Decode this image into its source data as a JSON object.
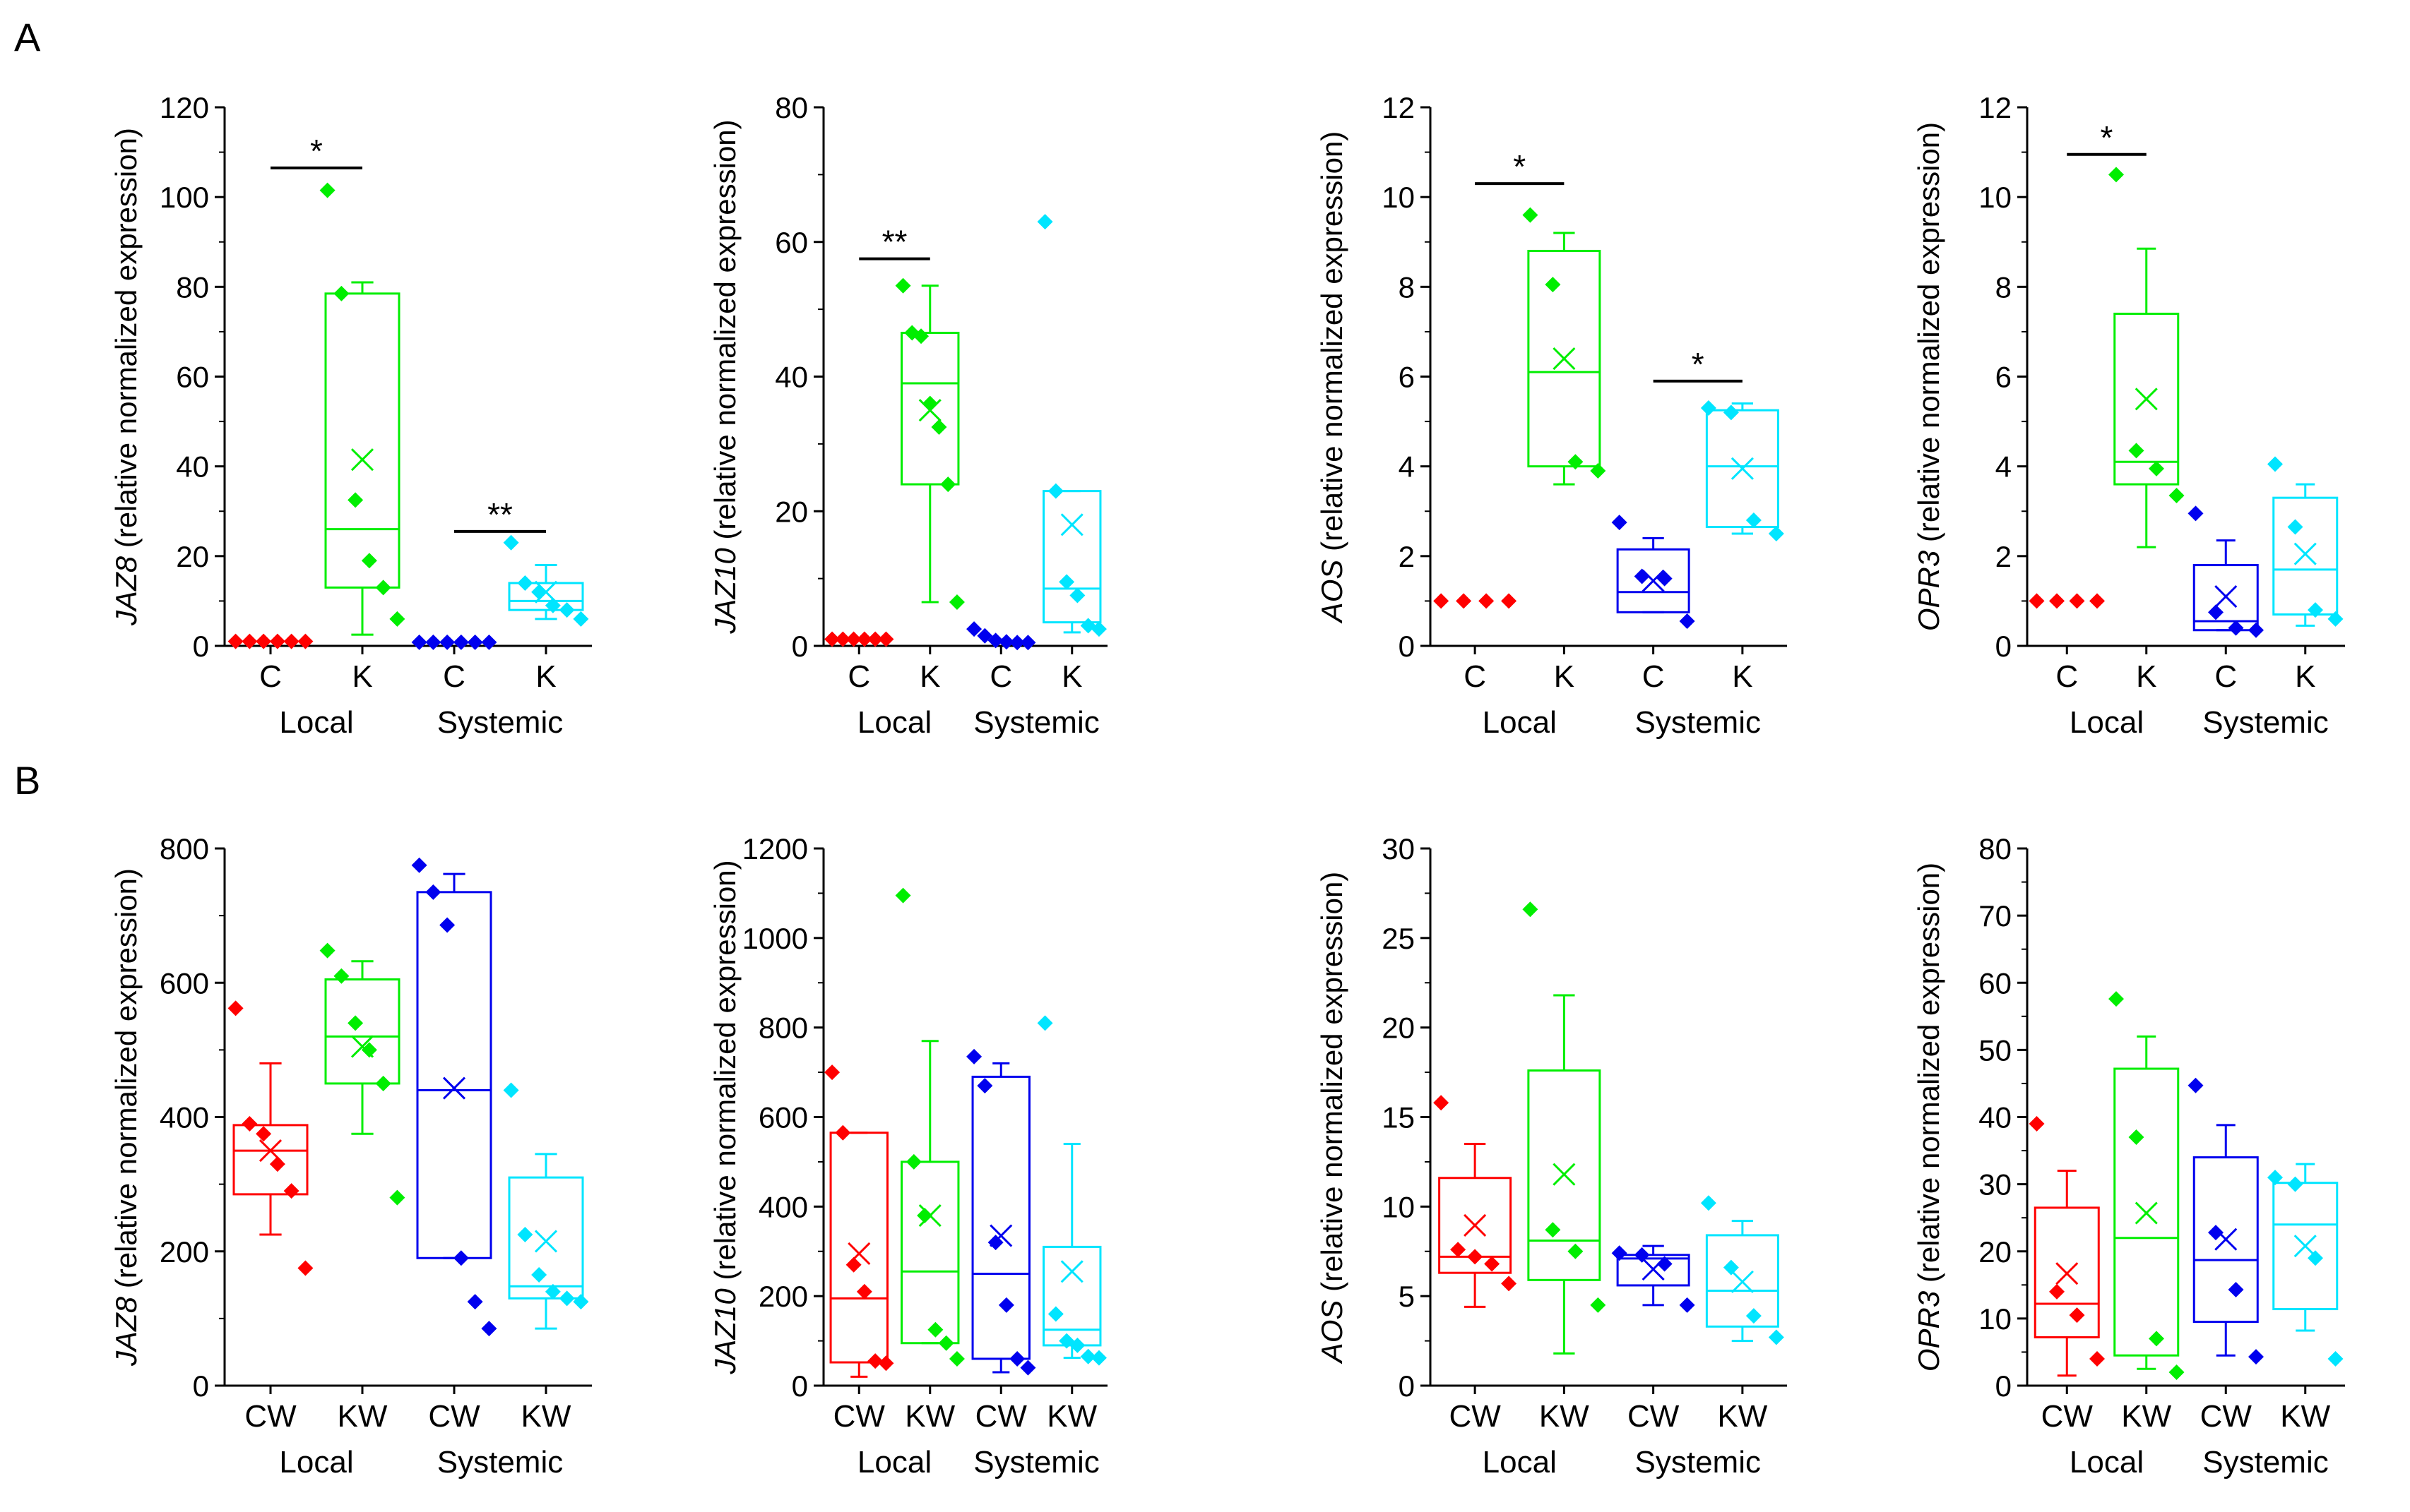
{
  "chart_data": [
    {
      "type": "box",
      "panel": "A",
      "gene": "JAZ8",
      "ylabel_rest": " (relative normalized expression)",
      "ylim": [
        0,
        120
      ],
      "yticks": [
        0,
        20,
        40,
        60,
        80,
        100,
        120
      ],
      "categories": [
        "C",
        "K",
        "C",
        "K"
      ],
      "groups": [
        "Local",
        "Systemic"
      ],
      "boxes": [
        {
          "name": "Local C",
          "color": "#ff0000",
          "points": [
            1,
            1,
            1,
            1,
            1,
            1
          ]
        },
        {
          "name": "Local K",
          "color": "#00ee00",
          "whislo": 2.5,
          "q1": 13,
          "med": 26,
          "q3": 78.5,
          "whishi": 81,
          "mean": 41.5,
          "points": [
            101.5,
            78.5,
            32.5,
            19,
            13,
            6
          ]
        },
        {
          "name": "Systemic C",
          "color": "#0000ee",
          "points": [
            0.8,
            0.8,
            0.8,
            0.8,
            0.8,
            0.8
          ]
        },
        {
          "name": "Systemic K",
          "color": "#00e5ff",
          "whislo": 6,
          "q1": 8,
          "med": 10,
          "q3": 14,
          "whishi": 18,
          "mean": 12,
          "points": [
            23,
            14,
            12,
            9,
            8,
            6
          ]
        }
      ],
      "significance": [
        {
          "box": 1,
          "label": "*",
          "y": 106.5
        },
        {
          "box": 3,
          "label": "**",
          "y": 25.5
        }
      ]
    },
    {
      "type": "box",
      "panel": "A",
      "gene": "JAZ10",
      "ylabel_rest": " (relative normalized expression)",
      "ylim": [
        0,
        80
      ],
      "yticks": [
        0,
        20,
        40,
        60,
        80
      ],
      "categories": [
        "C",
        "K",
        "C",
        "K"
      ],
      "groups": [
        "Local",
        "Systemic"
      ],
      "boxes": [
        {
          "name": "Local C",
          "color": "#ff0000",
          "points": [
            1,
            1,
            1,
            1,
            1,
            1
          ]
        },
        {
          "name": "Local K",
          "color": "#00ee00",
          "whislo": 6.5,
          "q1": 24,
          "med": 39,
          "q3": 46.5,
          "whishi": 53.5,
          "mean": 35,
          "points": [
            53.5,
            46.5,
            46,
            36,
            32.5,
            24,
            6.5
          ]
        },
        {
          "name": "Systemic C",
          "color": "#0000ee",
          "points": [
            2.5,
            1.5,
            0.8,
            0.6,
            0.5,
            0.5
          ]
        },
        {
          "name": "Systemic K",
          "color": "#00e5ff",
          "whislo": 2,
          "q1": 3.5,
          "med": 8.5,
          "q3": 23,
          "whishi": 23,
          "mean": 18,
          "points": [
            63,
            23,
            9.5,
            7.5,
            3,
            2.5
          ]
        }
      ],
      "significance": [
        {
          "box": 1,
          "label": "**",
          "y": 57.5
        }
      ]
    },
    {
      "type": "box",
      "panel": "A",
      "gene": "AOS",
      "ylabel_rest": " (relative normalized expression)",
      "ylim": [
        0,
        12
      ],
      "yticks": [
        0,
        2,
        4,
        6,
        8,
        10,
        12
      ],
      "categories": [
        "C",
        "K",
        "C",
        "K"
      ],
      "groups": [
        "Local",
        "Systemic"
      ],
      "boxes": [
        {
          "name": "Local C",
          "color": "#ff0000",
          "points": [
            1,
            1,
            1,
            1
          ]
        },
        {
          "name": "Local K",
          "color": "#00ee00",
          "whislo": 3.6,
          "q1": 4,
          "med": 6.1,
          "q3": 8.8,
          "whishi": 9.2,
          "mean": 6.4,
          "points": [
            9.6,
            8.05,
            4.1,
            3.9
          ]
        },
        {
          "name": "Systemic C",
          "color": "#0000ee",
          "whislo": 0.75,
          "q1": 0.75,
          "med": 1.2,
          "q3": 2.15,
          "whishi": 2.4,
          "mean": 1.45,
          "points": [
            2.75,
            1.55,
            1.5,
            0.55
          ]
        },
        {
          "name": "Systemic K",
          "color": "#00e5ff",
          "whislo": 2.5,
          "q1": 2.65,
          "med": 4,
          "q3": 5.25,
          "whishi": 5.4,
          "mean": 3.95,
          "points": [
            5.3,
            5.2,
            2.8,
            2.5
          ]
        }
      ],
      "significance": [
        {
          "box": 1,
          "label": "*",
          "y": 10.3
        },
        {
          "box": 3,
          "label": "*",
          "y": 5.9
        }
      ]
    },
    {
      "type": "box",
      "panel": "A",
      "gene": "OPR3",
      "ylabel_rest": " (relative normalized expression)",
      "ylim": [
        0,
        12
      ],
      "yticks": [
        0,
        2,
        4,
        6,
        8,
        10,
        12
      ],
      "categories": [
        "C",
        "K",
        "C",
        "K"
      ],
      "groups": [
        "Local",
        "Systemic"
      ],
      "boxes": [
        {
          "name": "Local C",
          "color": "#ff0000",
          "points": [
            1,
            1,
            1,
            1
          ]
        },
        {
          "name": "Local K",
          "color": "#00ee00",
          "whislo": 2.2,
          "q1": 3.6,
          "med": 4.1,
          "q3": 7.4,
          "whishi": 8.85,
          "mean": 5.5,
          "points": [
            10.5,
            4.35,
            3.95,
            3.35
          ]
        },
        {
          "name": "Systemic C",
          "color": "#0000ee",
          "whislo": 0.35,
          "q1": 0.35,
          "med": 0.55,
          "q3": 1.8,
          "whishi": 2.35,
          "mean": 1.1,
          "points": [
            2.95,
            0.75,
            0.4,
            0.35
          ]
        },
        {
          "name": "Systemic K",
          "color": "#00e5ff",
          "whislo": 0.45,
          "q1": 0.7,
          "med": 1.7,
          "q3": 3.3,
          "whishi": 3.6,
          "mean": 2.05,
          "points": [
            4.05,
            2.65,
            0.8,
            0.6
          ]
        }
      ],
      "significance": [
        {
          "box": 1,
          "label": "*",
          "y": 10.95
        }
      ]
    },
    {
      "type": "box",
      "panel": "B",
      "gene": "JAZ8",
      "ylabel_rest": " (relative normalized expression)",
      "ylim": [
        0,
        800
      ],
      "yticks": [
        0,
        200,
        400,
        600,
        800
      ],
      "categories": [
        "CW",
        "KW",
        "CW",
        "KW"
      ],
      "groups": [
        "Local",
        "Systemic"
      ],
      "boxes": [
        {
          "name": "Local CW",
          "color": "#ff0000",
          "whislo": 225,
          "q1": 285,
          "med": 350,
          "q3": 388,
          "whishi": 480,
          "mean": 350,
          "points": [
            562,
            390,
            375,
            330,
            290,
            175
          ]
        },
        {
          "name": "Local KW",
          "color": "#00ee00",
          "whislo": 375,
          "q1": 450,
          "med": 520,
          "q3": 605,
          "whishi": 632,
          "mean": 505,
          "points": [
            648,
            610,
            540,
            500,
            450,
            280
          ]
        },
        {
          "name": "Systemic CW",
          "color": "#0000ee",
          "whislo": 190,
          "q1": 190,
          "med": 440,
          "q3": 735,
          "whishi": 762,
          "mean": 443,
          "points": [
            775,
            735,
            686,
            190,
            125,
            85
          ]
        },
        {
          "name": "Systemic KW",
          "color": "#00e5ff",
          "whislo": 85,
          "q1": 130,
          "med": 148,
          "q3": 310,
          "whishi": 345,
          "mean": 215,
          "points": [
            440,
            225,
            165,
            140,
            130,
            125
          ]
        }
      ],
      "significance": []
    },
    {
      "type": "box",
      "panel": "B",
      "gene": "JAZ10",
      "ylabel_rest": " (relative normalized expression)",
      "ylim": [
        0,
        1200
      ],
      "yticks": [
        0,
        200,
        400,
        600,
        800,
        1000,
        1200
      ],
      "categories": [
        "CW",
        "KW",
        "CW",
        "KW"
      ],
      "groups": [
        "Local",
        "Systemic"
      ],
      "boxes": [
        {
          "name": "Local CW",
          "color": "#ff0000",
          "whislo": 20,
          "q1": 52,
          "med": 195,
          "q3": 565,
          "whishi": 565,
          "mean": 295,
          "points": [
            700,
            565,
            270,
            210,
            55,
            50
          ]
        },
        {
          "name": "Local KW",
          "color": "#00ee00",
          "whislo": 95,
          "q1": 95,
          "med": 255,
          "q3": 500,
          "whishi": 770,
          "mean": 380,
          "points": [
            1095,
            500,
            380,
            125,
            95,
            60
          ]
        },
        {
          "name": "Systemic CW",
          "color": "#0000ee",
          "whislo": 30,
          "q1": 60,
          "med": 250,
          "q3": 690,
          "whishi": 720,
          "mean": 335,
          "points": [
            735,
            670,
            320,
            180,
            60,
            40
          ]
        },
        {
          "name": "Systemic KW",
          "color": "#00e5ff",
          "whislo": 62,
          "q1": 90,
          "med": 125,
          "q3": 310,
          "whishi": 540,
          "mean": 255,
          "points": [
            810,
            160,
            100,
            90,
            65,
            62
          ]
        }
      ],
      "significance": []
    },
    {
      "type": "box",
      "panel": "B",
      "gene": "AOS",
      "ylabel_rest": " (relative normalized expression)",
      "ylim": [
        0,
        30
      ],
      "yticks": [
        0,
        5,
        10,
        15,
        20,
        25,
        30
      ],
      "categories": [
        "CW",
        "KW",
        "CW",
        "KW"
      ],
      "groups": [
        "Local",
        "Systemic"
      ],
      "boxes": [
        {
          "name": "Local CW",
          "color": "#ff0000",
          "whislo": 4.4,
          "q1": 6.3,
          "med": 7.2,
          "q3": 11.6,
          "whishi": 13.5,
          "mean": 8.95,
          "points": [
            15.8,
            7.6,
            7.2,
            6.8,
            5.7
          ]
        },
        {
          "name": "Local KW",
          "color": "#00ee00",
          "whislo": 1.8,
          "q1": 5.9,
          "med": 8.1,
          "q3": 17.6,
          "whishi": 21.8,
          "mean": 11.8,
          "points": [
            26.6,
            8.7,
            7.5,
            4.5
          ]
        },
        {
          "name": "Systemic CW",
          "color": "#0000ee",
          "whislo": 4.5,
          "q1": 5.6,
          "med": 7.1,
          "q3": 7.3,
          "whishi": 7.8,
          "mean": 6.5,
          "points": [
            7.4,
            7.3,
            6.8,
            4.5
          ]
        },
        {
          "name": "Systemic KW",
          "color": "#00e5ff",
          "whislo": 2.5,
          "q1": 3.3,
          "med": 5.3,
          "q3": 8.4,
          "whishi": 9.2,
          "mean": 5.8,
          "points": [
            10.2,
            6.6,
            3.9,
            2.7
          ]
        }
      ],
      "significance": []
    },
    {
      "type": "box",
      "panel": "B",
      "gene": "OPR3",
      "ylabel_rest": " (relative normalized expression)",
      "ylim": [
        0,
        80
      ],
      "yticks": [
        0,
        10,
        20,
        30,
        40,
        50,
        60,
        70,
        80
      ],
      "categories": [
        "CW",
        "KW",
        "CW",
        "KW"
      ],
      "groups": [
        "Local",
        "Systemic"
      ],
      "boxes": [
        {
          "name": "Local CW",
          "color": "#ff0000",
          "whislo": 1.5,
          "q1": 7.2,
          "med": 12.2,
          "q3": 26.5,
          "whishi": 32,
          "mean": 16.7,
          "points": [
            39,
            14,
            10.5,
            4
          ]
        },
        {
          "name": "Local KW",
          "color": "#00ee00",
          "whislo": 2.5,
          "q1": 4.5,
          "med": 22,
          "q3": 47.2,
          "whishi": 52,
          "mean": 25.7,
          "points": [
            57.6,
            37,
            7,
            2
          ]
        },
        {
          "name": "Systemic CW",
          "color": "#0000ee",
          "whislo": 4.5,
          "q1": 9.5,
          "med": 18.7,
          "q3": 34,
          "whishi": 38.8,
          "mean": 21.8,
          "points": [
            44.7,
            22.8,
            14.3,
            4.3
          ]
        },
        {
          "name": "Systemic KW",
          "color": "#00e5ff",
          "whislo": 8.2,
          "q1": 11.4,
          "med": 24,
          "q3": 30.2,
          "whishi": 33,
          "mean": 20.8,
          "points": [
            31,
            30,
            19,
            4
          ]
        }
      ],
      "significance": []
    }
  ],
  "panel_labels": {
    "a": "A",
    "b": "B"
  }
}
